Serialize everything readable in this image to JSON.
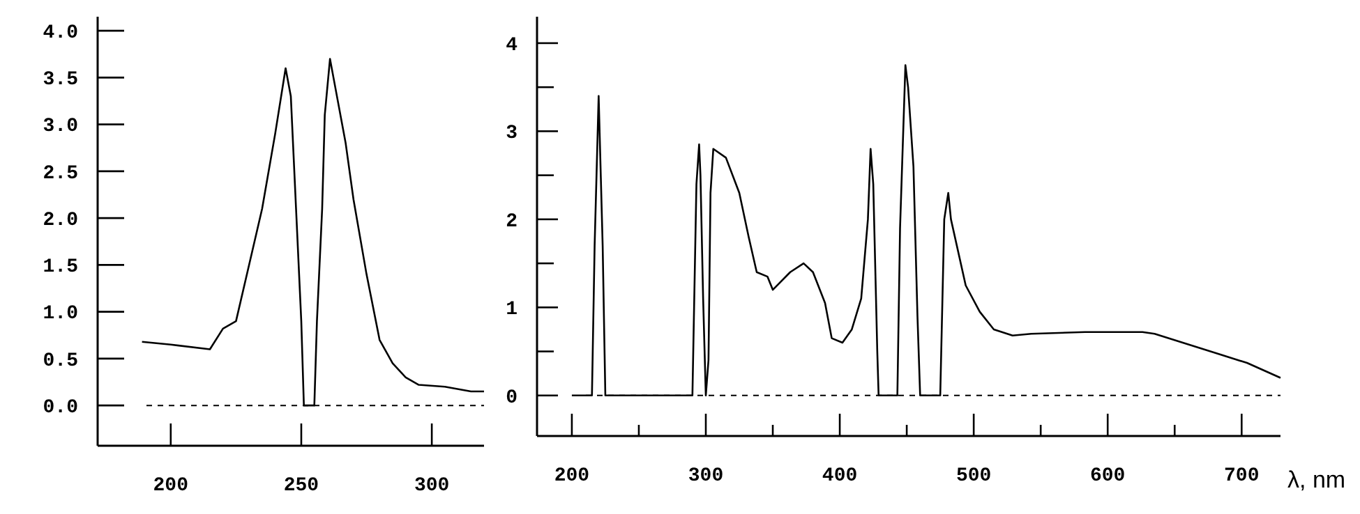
{
  "chart_data": [
    {
      "type": "line",
      "x": [
        189,
        200,
        215,
        220,
        225,
        230,
        235,
        240,
        244,
        246,
        248,
        250,
        251,
        255,
        256,
        258,
        259,
        261,
        263,
        267,
        270,
        275,
        280,
        285,
        290,
        295,
        305,
        315,
        320
      ],
      "series": [
        {
          "color": "#000000",
          "values": [
            0.68,
            0.65,
            0.6,
            0.82,
            0.9,
            1.5,
            2.1,
            2.9,
            3.6,
            3.3,
            2.1,
            0.9,
            0,
            0,
            0.9,
            2.1,
            3.1,
            3.7,
            3.4,
            2.8,
            2.2,
            1.4,
            0.7,
            0.45,
            0.3,
            0.22,
            0.2,
            0.15,
            0.15
          ]
        }
      ],
      "xlim": [
        172,
        320
      ],
      "ylim": [
        -0.43,
        4.15
      ],
      "xticks": [
        200,
        250,
        300
      ],
      "yticks": [
        {
          "value": 0,
          "label": "0.0"
        },
        0.5,
        {
          "value": 1,
          "label": "1.0"
        },
        1.5,
        {
          "value": 2,
          "label": "2.0"
        },
        2.5,
        {
          "value": 3,
          "label": "3.0"
        },
        3.5,
        {
          "value": 4,
          "label": "4.0"
        }
      ],
      "ref_lines": [
        {
          "axis": "y",
          "value": 0,
          "line_style": "dashed",
          "color": "#000000"
        }
      ],
      "grid": false,
      "marker": "none",
      "line_style": "solid"
    },
    {
      "type": "line",
      "xlabel": "λ, nm",
      "x": [
        200,
        215,
        217,
        220,
        223,
        225,
        290,
        293,
        295,
        296,
        298,
        300,
        302,
        303.5,
        305.6,
        315,
        325,
        332,
        338,
        346,
        350,
        363,
        373,
        380,
        389,
        394,
        402,
        409,
        416,
        421,
        423,
        425,
        428,
        429,
        443,
        445,
        449,
        451,
        455,
        458,
        460,
        475,
        478,
        481,
        483,
        494,
        504.5,
        515,
        529,
        543,
        583,
        626,
        635,
        704,
        729
      ],
      "series": [
        {
          "color": "#000000",
          "values": [
            0,
            0,
            1.7,
            3.4,
            1.7,
            0,
            0,
            2.4,
            2.85,
            2.5,
            1.1,
            0,
            0.4,
            2.3,
            2.8,
            2.7,
            2.3,
            1.8,
            1.4,
            1.35,
            1.2,
            1.4,
            1.5,
            1.4,
            1.05,
            0.65,
            0.6,
            0.75,
            1.1,
            2.0,
            2.8,
            2.4,
            0.5,
            0,
            0,
            1.9,
            3.75,
            3.5,
            2.6,
            0.9,
            0,
            0,
            2.0,
            2.3,
            2.0,
            1.25,
            0.95,
            0.75,
            0.68,
            0.7,
            0.72,
            0.72,
            0.7,
            0.37,
            0.2
          ]
        }
      ],
      "xlim": [
        174,
        729
      ],
      "ylim": [
        -0.46,
        4.3
      ],
      "xticks": [
        200,
        {
          "value": 250,
          "label": null
        },
        300,
        {
          "value": 350,
          "label": null
        },
        400,
        {
          "value": 450,
          "label": null
        },
        500,
        {
          "value": 550,
          "label": null
        },
        600,
        {
          "value": 650,
          "label": null
        },
        700
      ],
      "yticks": [
        0,
        {
          "value": 0.5,
          "label": null
        },
        1,
        {
          "value": 1.5,
          "label": null
        },
        2,
        {
          "value": 2.5,
          "label": null
        },
        3,
        {
          "value": 3.5,
          "label": null
        },
        4
      ],
      "ref_lines": [
        {
          "axis": "y",
          "value": 0,
          "line_style": "dashed",
          "color": "#000000"
        }
      ],
      "grid": false,
      "marker": "none",
      "line_style": "solid"
    }
  ]
}
